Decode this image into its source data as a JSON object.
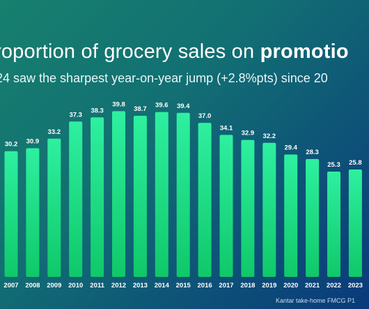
{
  "title": {
    "prefix": "roportion of grocery sales on ",
    "bold": "promotio"
  },
  "subtitle": "24 saw the sharpest year-on-year jump (+2.8%pts) since 20",
  "source": "Kantar take-home FMCG P1",
  "colors": {
    "bar_top": "#2ef0a0",
    "bar_bottom": "#0fc869"
  },
  "chart_data": {
    "type": "bar",
    "categories": [
      "2007",
      "2008",
      "2009",
      "2010",
      "2011",
      "2012",
      "2013",
      "2014",
      "2015",
      "2016",
      "2017",
      "2018",
      "2019",
      "2020",
      "2021",
      "2022",
      "2023"
    ],
    "values": [
      30.2,
      30.9,
      33.2,
      37.3,
      38.3,
      39.8,
      38.7,
      39.6,
      39.4,
      37.0,
      34.1,
      32.9,
      32.2,
      29.4,
      28.3,
      25.3,
      25.8
    ],
    "data_labels": [
      "30.2",
      "30.9",
      "33.2",
      "37.3",
      "38.3",
      "39.8",
      "38.7",
      "39.6",
      "39.4",
      "37.0",
      "34.1",
      "32.9",
      "32.2",
      "29.4",
      "28.3",
      "25.3",
      "25.8"
    ],
    "title": "",
    "xlabel": "",
    "ylabel": "",
    "grid": false
  }
}
